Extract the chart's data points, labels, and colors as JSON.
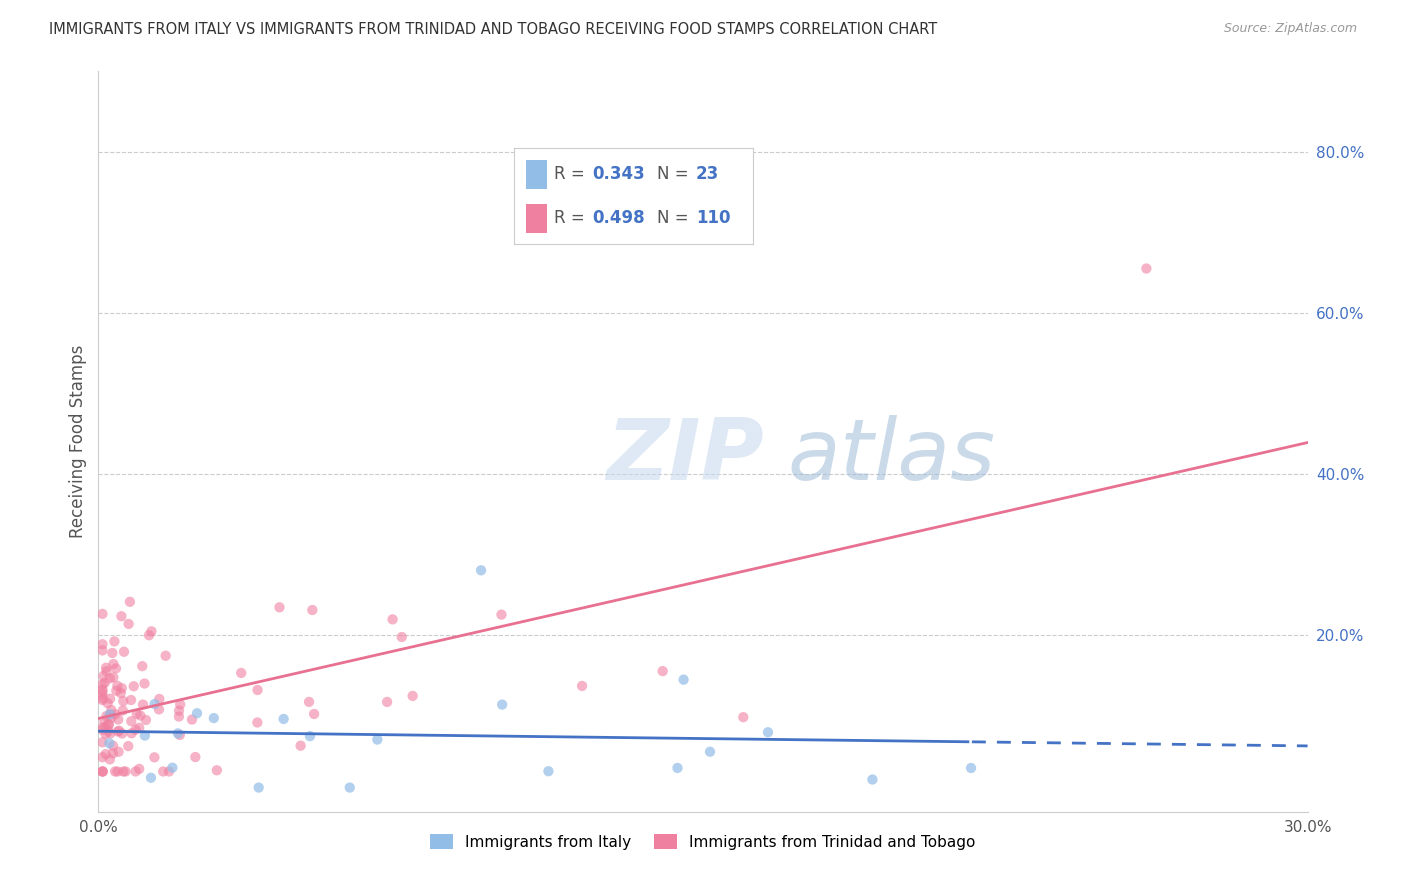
{
  "title": "IMMIGRANTS FROM ITALY VS IMMIGRANTS FROM TRINIDAD AND TOBAGO RECEIVING FOOD STAMPS CORRELATION CHART",
  "source": "Source: ZipAtlas.com",
  "ylabel": "Receiving Food Stamps",
  "xlim": [
    0.0,
    0.3
  ],
  "ylim": [
    -0.02,
    0.9
  ],
  "italy_R": 0.343,
  "italy_N": 23,
  "tt_R": 0.498,
  "tt_N": 110,
  "italy_color": "#92bde7",
  "tt_color": "#f080a0",
  "italy_line_color": "#4472c4",
  "tt_line_color": "#e87090",
  "watermark_zip": "ZIP",
  "watermark_atlas": "atlas",
  "background_color": "#ffffff",
  "legend_italy_label": "Immigrants from Italy",
  "legend_tt_label": "Immigrants from Trinidad and Tobago",
  "right_ytick_color": "#4472c4",
  "grid_color": "#cccccc",
  "title_color": "#333333",
  "source_color": "#999999",
  "ylabel_color": "#555555"
}
